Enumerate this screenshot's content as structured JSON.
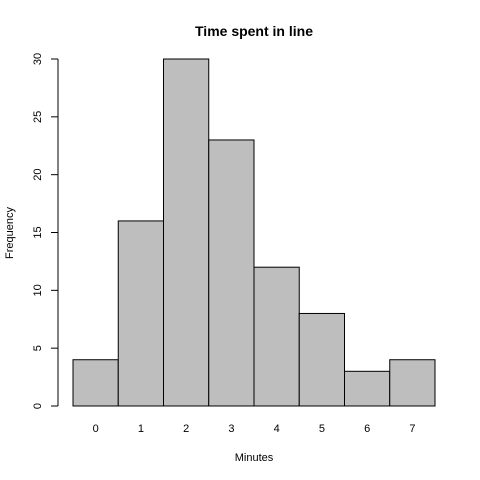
{
  "chart_data": {
    "type": "bar",
    "title": "Time spent in line",
    "xlabel": "Minutes",
    "ylabel": "Frequency",
    "categories": [
      "0",
      "1",
      "2",
      "3",
      "4",
      "5",
      "6",
      "7"
    ],
    "values": [
      4,
      16,
      30,
      23,
      12,
      8,
      3,
      4
    ],
    "ylim": [
      0,
      30
    ],
    "yticks": [
      0,
      5,
      10,
      15,
      20,
      25,
      30
    ],
    "bar_color": "#bebebe",
    "grid": false,
    "legend": "none"
  }
}
